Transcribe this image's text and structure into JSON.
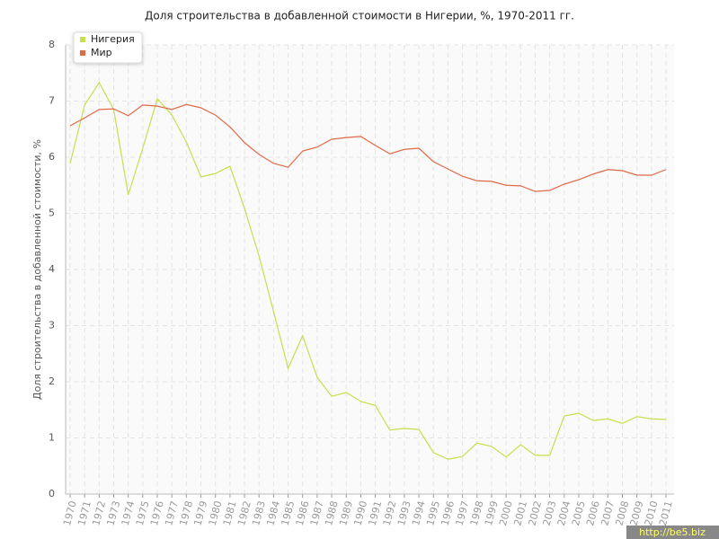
{
  "chart_data": {
    "type": "line",
    "title": "Доля строительства в добавленной стоимости в Нигерии, %, 1970-2011 гг.",
    "y_label": "Доля строительства в добавленной стоимости, %",
    "watermark": "http://be5.biz",
    "categories": [
      "1970",
      "1971",
      "1972",
      "1973",
      "1974",
      "1975",
      "1976",
      "1977",
      "1978",
      "1979",
      "1980",
      "1981",
      "1982",
      "1983",
      "1984",
      "1985",
      "1986",
      "1987",
      "1988",
      "1989",
      "1990",
      "1991",
      "1992",
      "1993",
      "1994",
      "1995",
      "1996",
      "1997",
      "1998",
      "1999",
      "2000",
      "2001",
      "2002",
      "2003",
      "2004",
      "2005",
      "2006",
      "2007",
      "2008",
      "2009",
      "2010",
      "2011"
    ],
    "series": [
      {
        "name": "Нигерия",
        "color": "#c8de4e",
        "values": [
          5.89,
          6.93,
          7.33,
          6.85,
          5.33,
          6.16,
          7.04,
          6.75,
          6.27,
          5.65,
          5.71,
          5.84,
          5.09,
          4.24,
          3.25,
          2.24,
          2.82,
          2.08,
          1.74,
          1.81,
          1.65,
          1.58,
          1.14,
          1.17,
          1.15,
          0.74,
          0.62,
          0.67,
          0.91,
          0.85,
          0.66,
          0.88,
          0.69,
          0.69,
          1.39,
          1.44,
          1.31,
          1.34,
          1.26,
          1.38,
          1.34,
          1.33
        ]
      },
      {
        "name": "Мир",
        "color": "#e06a47",
        "values": [
          6.56,
          6.7,
          6.85,
          6.86,
          6.74,
          6.93,
          6.91,
          6.85,
          6.94,
          6.88,
          6.75,
          6.54,
          6.26,
          6.05,
          5.89,
          5.82,
          6.11,
          6.18,
          6.32,
          6.35,
          6.37,
          6.21,
          6.06,
          6.14,
          6.16,
          5.92,
          5.79,
          5.66,
          5.58,
          5.57,
          5.5,
          5.49,
          5.39,
          5.41,
          5.52,
          5.6,
          5.7,
          5.78,
          5.76,
          5.68,
          5.68,
          5.78
        ]
      }
    ],
    "ylim": [
      0,
      8
    ],
    "yticks": [
      0,
      1,
      2,
      3,
      4,
      5,
      6,
      7,
      8
    ],
    "grid": true,
    "legend": "top-left"
  }
}
